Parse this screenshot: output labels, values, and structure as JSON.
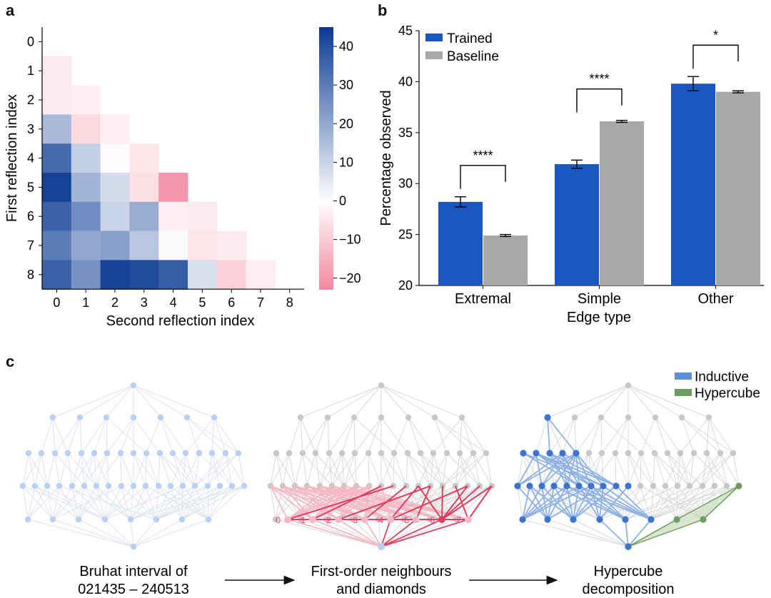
{
  "panel_labels": {
    "a": "a",
    "b": "b",
    "c": "c"
  },
  "chart_data": [
    {
      "type": "heatmap",
      "panel": "a",
      "xlabel": "Second reflection index",
      "ylabel": "First reflection index",
      "x_ticks": [
        "0",
        "1",
        "2",
        "3",
        "4",
        "5",
        "6",
        "7",
        "8"
      ],
      "y_ticks": [
        "0",
        "1",
        "2",
        "3",
        "4",
        "5",
        "6",
        "7",
        "8"
      ],
      "colorbar": {
        "ticks": [
          -20,
          -10,
          0,
          10,
          20,
          30,
          40
        ],
        "tick_labels": [
          "−20",
          "−10",
          "0",
          "10",
          "20",
          "30",
          "40"
        ],
        "range": [
          -23,
          45
        ],
        "neg_color": "#f4879f",
        "zero_color": "#ffffff",
        "pos_color": "#0b3a93"
      },
      "values": [
        [],
        [
          -4
        ],
        [
          -4,
          -3
        ],
        [
          16,
          -7,
          -3
        ],
        [
          34,
          11,
          -1,
          -5
        ],
        [
          43,
          17,
          8,
          -6,
          -20
        ],
        [
          36,
          26,
          10,
          19,
          -3,
          -4
        ],
        [
          30,
          20,
          22,
          13,
          1,
          -5,
          -4
        ],
        [
          36,
          25,
          43,
          41,
          37,
          7,
          -9,
          -3
        ]
      ]
    },
    {
      "type": "bar",
      "panel": "b",
      "xlabel": "Edge type",
      "ylabel": "Percentage observed",
      "ylim": [
        20,
        45
      ],
      "y_ticks": [
        20,
        25,
        30,
        35,
        40,
        45
      ],
      "categories": [
        "Extremal",
        "Simple",
        "Other"
      ],
      "series": [
        {
          "name": "Trained",
          "values": [
            28.2,
            31.9,
            39.8
          ],
          "errors": [
            0.5,
            0.4,
            0.7
          ],
          "color": "#1a56c0"
        },
        {
          "name": "Baseline",
          "values": [
            24.9,
            36.1,
            39.0
          ],
          "errors": [
            0.1,
            0.1,
            0.1
          ],
          "color": "#a8a8a8"
        }
      ],
      "significance": [
        "****",
        "****",
        "*"
      ],
      "legend_position": "top-left"
    }
  ],
  "panel_c": {
    "legend": [
      {
        "label": "Inductive",
        "color": "#5b8fd8"
      },
      {
        "label": "Hypercube",
        "color": "#6e9e5e"
      }
    ],
    "captions": [
      {
        "line1": "Bruhat interval of",
        "line2": "021435 – 240513"
      },
      {
        "line1": "First-order neighbours",
        "line2": "and diamonds"
      },
      {
        "line1": "Hypercube",
        "line2": "decomposition"
      }
    ],
    "diamond_labels": [
      "0",
      "1",
      "2",
      "3",
      "4",
      "5",
      "6",
      "7"
    ],
    "colors": {
      "grey_edge": "#d9d9d9",
      "grey_node": "#c8c8c8",
      "light_blue_node": "#b9d0f4",
      "light_blue_edge": "#dde3ec",
      "red": "#e0405f",
      "pink": "#f6b8c6",
      "blue": "#3d73cf",
      "blue_edge": "#8eb1e4",
      "green": "#6e9e5e",
      "green_fill": "#c7dcbc"
    }
  }
}
